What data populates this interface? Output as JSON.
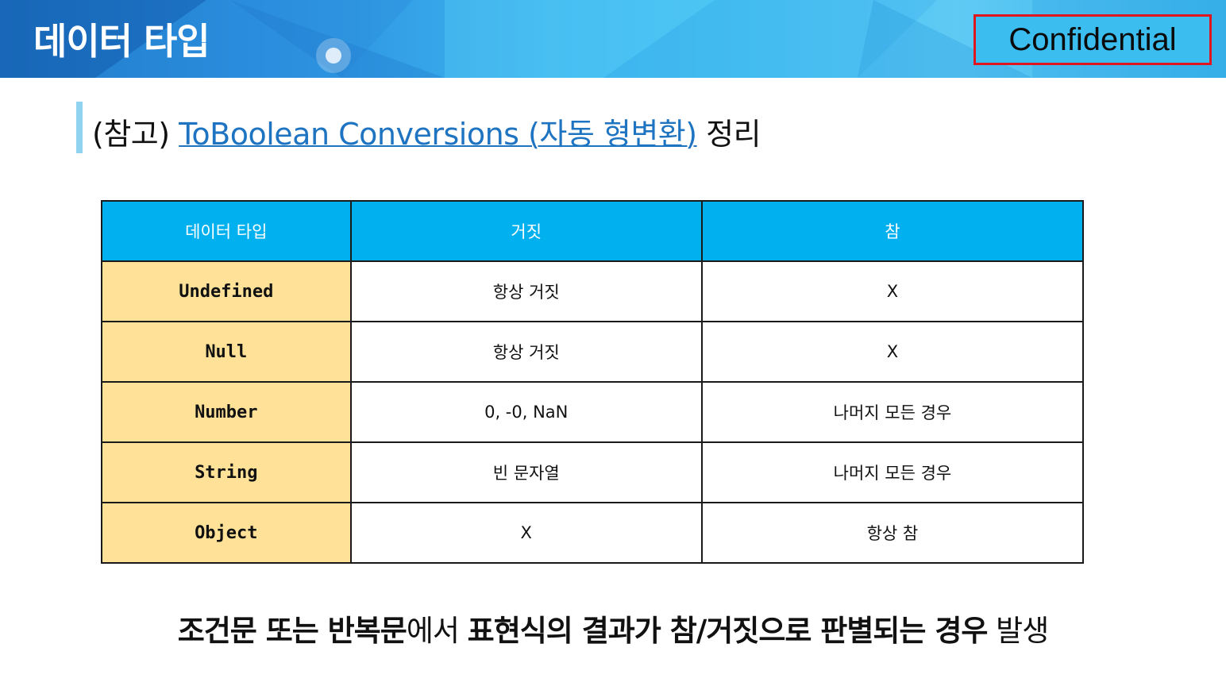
{
  "header": {
    "title": "데이터 타입",
    "badge": "Confidential"
  },
  "subtitle": {
    "prefix": "(참고) ",
    "link_text": "ToBoolean Conversions (자동 형변환)",
    "suffix": " 정리"
  },
  "table": {
    "headers": [
      "데이터 타입",
      "거짓",
      "참"
    ],
    "rows": [
      {
        "type": "Undefined",
        "false": "항상 거짓",
        "true": "X"
      },
      {
        "type": "Null",
        "false": "항상 거짓",
        "true": "X"
      },
      {
        "type": "Number",
        "false": "0, -0, NaN",
        "true": "나머지 모든 경우"
      },
      {
        "type": "String",
        "false": "빈 문자열",
        "true": "나머지 모든 경우"
      },
      {
        "type": "Object",
        "false": "X",
        "true": "항상 참"
      }
    ]
  },
  "footer": {
    "part1": "조건문 또는 반복문",
    "part2": "에서 ",
    "part3": "표현식의 결과가 참/거짓으로 판별되는 경우",
    "part4": " 발생"
  },
  "colors": {
    "header_bg": "#00b0ef",
    "type_cell_bg": "#ffe298",
    "link": "#1f74c2",
    "badge_border": "#e0161e"
  }
}
